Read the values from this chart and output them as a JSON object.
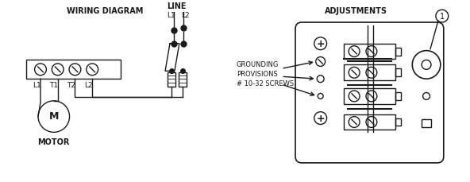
{
  "bg_color": "#ffffff",
  "line_color": "#1a1a1a",
  "title_left": "WIRING DIAGRAM",
  "title_right": "ADJUSTMENTS",
  "label_line": "LINE",
  "label_l1_top": "L1",
  "label_l2_top": "L2",
  "label_l1": "L1",
  "label_t1": "T1",
  "label_t2": "T2",
  "label_l2": "L2",
  "label_motor": "MOTOR",
  "label_m": "M",
  "label_grounding": "GROUNDING\nPROVISIONS\n# 10-32 SCREWS",
  "label_1": "1",
  "figsize": [
    5.92,
    2.3
  ],
  "dpi": 100
}
